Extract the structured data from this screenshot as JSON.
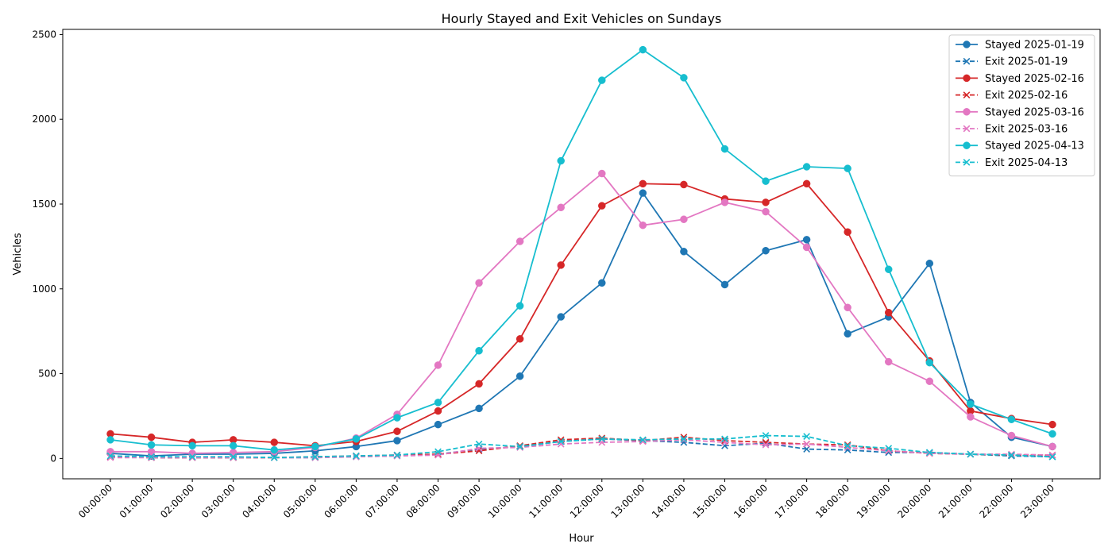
{
  "chart_data": {
    "type": "line",
    "title": "Hourly Stayed and Exit Vehicles on Sundays",
    "xlabel": "Hour",
    "ylabel": "Vehicles",
    "categories": [
      "00:00:00",
      "01:00:00",
      "02:00:00",
      "03:00:00",
      "04:00:00",
      "05:00:00",
      "06:00:00",
      "07:00:00",
      "08:00:00",
      "09:00:00",
      "10:00:00",
      "11:00:00",
      "12:00:00",
      "13:00:00",
      "14:00:00",
      "15:00:00",
      "16:00:00",
      "17:00:00",
      "18:00:00",
      "19:00:00",
      "20:00:00",
      "21:00:00",
      "22:00:00",
      "23:00:00"
    ],
    "ylim": [
      -120,
      2530
    ],
    "yticks": [
      0,
      500,
      1000,
      1500,
      2000,
      2500
    ],
    "grid": false,
    "legend_position": "top-right",
    "series": [
      {
        "name": "Stayed 2025-01-19",
        "color": "#1f77b4",
        "style": "solid",
        "marker": "circle",
        "values": [
          30,
          15,
          25,
          25,
          30,
          45,
          70,
          105,
          200,
          295,
          485,
          835,
          1035,
          1565,
          1220,
          1025,
          1225,
          1290,
          735,
          835,
          1150,
          330,
          125,
          70
        ]
      },
      {
        "name": "Exit 2025-01-19",
        "color": "#1f77b4",
        "style": "dashed",
        "marker": "x",
        "values": [
          10,
          5,
          5,
          5,
          5,
          5,
          10,
          15,
          25,
          55,
          70,
          100,
          115,
          105,
          95,
          75,
          90,
          55,
          50,
          35,
          35,
          25,
          15,
          10
        ]
      },
      {
        "name": "Stayed 2025-02-16",
        "color": "#d62728",
        "style": "solid",
        "marker": "circle",
        "values": [
          145,
          125,
          95,
          110,
          95,
          75,
          100,
          160,
          280,
          440,
          705,
          1140,
          1490,
          1620,
          1615,
          1530,
          1510,
          1620,
          1335,
          860,
          575,
          280,
          235,
          200
        ]
      },
      {
        "name": "Exit 2025-02-16",
        "color": "#d62728",
        "style": "dashed",
        "marker": "x",
        "values": [
          10,
          5,
          5,
          5,
          5,
          10,
          15,
          20,
          25,
          45,
          75,
          110,
          120,
          105,
          125,
          105,
          95,
          85,
          80,
          45,
          30,
          25,
          20,
          20
        ]
      },
      {
        "name": "Stayed 2025-03-16",
        "color": "#e377c2",
        "style": "solid",
        "marker": "circle",
        "values": [
          40,
          40,
          30,
          35,
          40,
          65,
          120,
          260,
          550,
          1035,
          1280,
          1480,
          1680,
          1375,
          1410,
          1510,
          1455,
          1245,
          890,
          570,
          455,
          245,
          135,
          70
        ]
      },
      {
        "name": "Exit 2025-03-16",
        "color": "#e377c2",
        "style": "dashed",
        "marker": "x",
        "values": [
          5,
          5,
          5,
          5,
          5,
          5,
          10,
          15,
          20,
          60,
          65,
          85,
          95,
          100,
          110,
          95,
          80,
          85,
          65,
          45,
          30,
          25,
          25,
          20
        ]
      },
      {
        "name": "Stayed 2025-04-13",
        "color": "#17becf",
        "style": "solid",
        "marker": "circle",
        "values": [
          110,
          80,
          75,
          75,
          50,
          70,
          115,
          240,
          330,
          635,
          900,
          1755,
          2230,
          2410,
          2245,
          1825,
          1635,
          1720,
          1710,
          1115,
          565,
          320,
          230,
          145
        ]
      },
      {
        "name": "Exit 2025-04-13",
        "color": "#17becf",
        "style": "dashed",
        "marker": "x",
        "values": [
          15,
          10,
          10,
          10,
          5,
          10,
          15,
          20,
          40,
          85,
          70,
          100,
          115,
          110,
          115,
          115,
          135,
          130,
          75,
          60,
          35,
          25,
          20,
          10
        ]
      }
    ]
  }
}
